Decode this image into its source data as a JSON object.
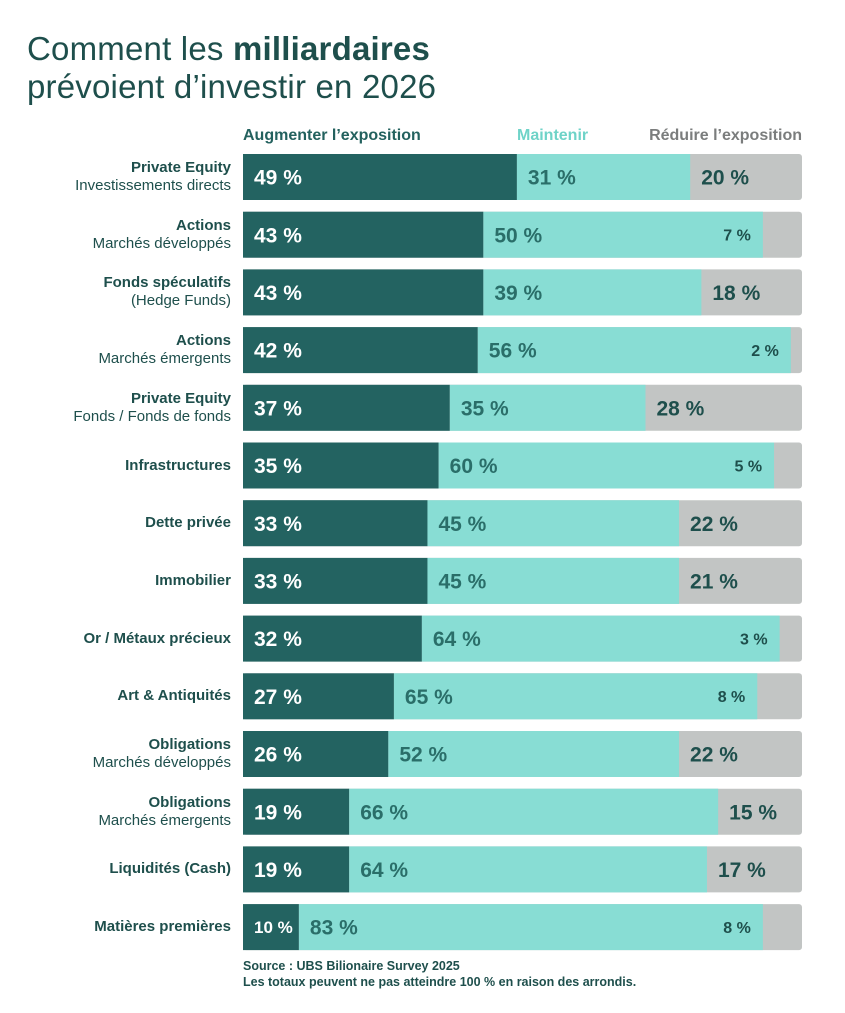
{
  "title": {
    "plain_1": "Comment les ",
    "bold": "milliardaires",
    "line2": "prévoient d’investir en 2026"
  },
  "legend": {
    "increase": "Augmenter l’exposition",
    "maintain": "Maintenir",
    "reduce": "Réduire l’exposition"
  },
  "colors": {
    "increase": "#236361",
    "maintain": "#88ddd4",
    "reduce": "#c2c5c4",
    "label": "#1e4f4c"
  },
  "chart_data": {
    "type": "bar",
    "orientation": "horizontal",
    "stacked": true,
    "unit": "%",
    "series_names": [
      "Augmenter l’exposition",
      "Maintenir",
      "Réduire l’exposition"
    ],
    "rows": [
      {
        "label": "Private Equity",
        "sublabel": "Investissements directs",
        "values": [
          49,
          31,
          20
        ],
        "texts": [
          "49 %",
          "31 %",
          "20 %"
        ]
      },
      {
        "label": "Actions",
        "sublabel": "Marchés développés",
        "values": [
          43,
          50,
          7
        ],
        "texts": [
          "43 %",
          "50 %",
          "7 %"
        ]
      },
      {
        "label": "Fonds spéculatifs",
        "sublabel": "(Hedge Funds)",
        "values": [
          43,
          39,
          18
        ],
        "texts": [
          "43 %",
          "39 %",
          "18 %"
        ]
      },
      {
        "label": "Actions",
        "sublabel": "Marchés émergents",
        "values": [
          42,
          56,
          2
        ],
        "texts": [
          "42 %",
          "56 %",
          "2 %"
        ]
      },
      {
        "label": "Private Equity",
        "sublabel": "Fonds / Fonds de fonds",
        "values": [
          37,
          35,
          28
        ],
        "texts": [
          "37 %",
          "35 %",
          "28 %"
        ]
      },
      {
        "label": "Infrastructures",
        "sublabel": "",
        "values": [
          35,
          60,
          5
        ],
        "texts": [
          "35 %",
          "60 %",
          "5 %"
        ]
      },
      {
        "label": "Dette privée",
        "sublabel": "",
        "values": [
          33,
          45,
          22
        ],
        "texts": [
          "33 %",
          "45 %",
          "22 %"
        ]
      },
      {
        "label": "Immobilier",
        "sublabel": "",
        "values": [
          33,
          45,
          21
        ],
        "texts": [
          "33 %",
          "45 %",
          "21 %"
        ]
      },
      {
        "label": "Or / Métaux précieux",
        "sublabel": "",
        "values": [
          32,
          64,
          3
        ],
        "texts": [
          "32 %",
          "64 %",
          "3 %"
        ]
      },
      {
        "label": "Art & Antiquités",
        "sublabel": "",
        "values": [
          27,
          65,
          8
        ],
        "texts": [
          "27 %",
          "65 %",
          "8 %"
        ]
      },
      {
        "label": "Obligations",
        "sublabel": "Marchés développés",
        "values": [
          26,
          52,
          22
        ],
        "texts": [
          "26 %",
          "52 %",
          "22 %"
        ]
      },
      {
        "label": "Obligations",
        "sublabel": "Marchés émergents",
        "values": [
          19,
          66,
          15
        ],
        "texts": [
          "19 %",
          "66 %",
          "15 %"
        ]
      },
      {
        "label": "Liquidités (Cash)",
        "sublabel": "",
        "values": [
          19,
          64,
          17
        ],
        "texts": [
          "19 %",
          "64 %",
          "17 %"
        ]
      },
      {
        "label": "Matières premières",
        "sublabel": "",
        "values": [
          10,
          83,
          8
        ],
        "texts": [
          "10 %",
          "83 %",
          "8 %"
        ]
      }
    ]
  },
  "source": {
    "line1": "Source : UBS Bilionaire Survey 2025",
    "line2": "Les totaux peuvent ne pas atteindre 100 % en raison des arrondis."
  }
}
